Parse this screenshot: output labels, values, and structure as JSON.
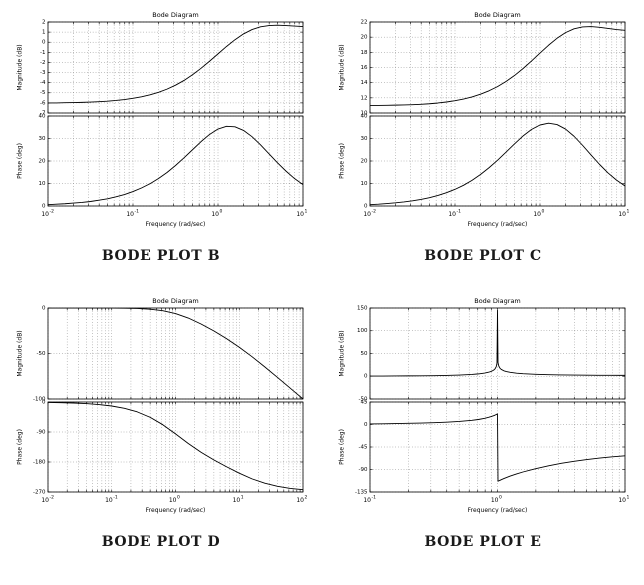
{
  "styles": {
    "background": "#ffffff",
    "grid_color": "#6e6e6e",
    "curve_color": "#000000",
    "axis_color": "#000000",
    "caption_color": "#1a1a1a"
  },
  "chart_data": [
    {
      "id": "bode-b",
      "type": "line",
      "caption": "BODE PLOT B",
      "title": "Bode Diagram",
      "xlabel": "Frequency (rad/sec)",
      "x_scale": "log10",
      "x_log_range": [
        -2,
        1
      ],
      "x_tick_exponents": [
        -2,
        -1,
        0,
        1
      ],
      "grid": true,
      "subplots": [
        {
          "name": "magnitude",
          "ylabel": "Magnitude (dB)",
          "ylim": [
            -7,
            2
          ],
          "yticks": [
            2,
            1,
            0,
            -1,
            -2,
            -3,
            -4,
            -5,
            -6,
            -7
          ],
          "x": [
            -2,
            -1.9,
            -1.8,
            -1.7,
            -1.6,
            -1.5,
            -1.4,
            -1.3,
            -1.2,
            -1.1,
            -1,
            -0.9,
            -0.8,
            -0.7,
            -0.6,
            -0.5,
            -0.4,
            -0.3,
            -0.2,
            -0.1,
            0,
            0.1,
            0.2,
            0.3,
            0.4,
            0.5,
            0.6,
            0.7,
            0.8,
            0.9,
            1
          ],
          "y": [
            -6.0,
            -6.0,
            -5.98,
            -5.97,
            -5.95,
            -5.92,
            -5.88,
            -5.83,
            -5.76,
            -5.67,
            -5.55,
            -5.4,
            -5.2,
            -4.95,
            -4.64,
            -4.25,
            -3.78,
            -3.22,
            -2.58,
            -1.88,
            -1.15,
            -0.42,
            0.25,
            0.82,
            1.25,
            1.52,
            1.65,
            1.68,
            1.65,
            1.6,
            1.55
          ]
        },
        {
          "name": "phase",
          "ylabel": "Phase (deg)",
          "ylim": [
            0,
            40
          ],
          "yticks": [
            40,
            30,
            20,
            10,
            0
          ],
          "x": [
            -2,
            -1.9,
            -1.8,
            -1.7,
            -1.6,
            -1.5,
            -1.4,
            -1.3,
            -1.2,
            -1.1,
            -1,
            -0.9,
            -0.8,
            -0.7,
            -0.6,
            -0.5,
            -0.4,
            -0.3,
            -0.2,
            -0.1,
            0,
            0.1,
            0.2,
            0.3,
            0.4,
            0.5,
            0.6,
            0.7,
            0.8,
            0.9,
            1
          ],
          "y": [
            0.6,
            0.8,
            1.0,
            1.3,
            1.6,
            2.0,
            2.6,
            3.2,
            4.1,
            5.1,
            6.4,
            8.0,
            9.9,
            12.2,
            14.9,
            18.0,
            21.4,
            25.0,
            28.6,
            31.8,
            34.2,
            35.4,
            35.2,
            33.6,
            30.8,
            27.2,
            23.2,
            19.2,
            15.5,
            12.2,
            9.5
          ]
        }
      ]
    },
    {
      "id": "bode-c",
      "type": "line",
      "caption": "BODE PLOT C",
      "title": "Bode Diagram",
      "xlabel": "Frequency (rad/sec)",
      "x_scale": "log10",
      "x_log_range": [
        -2,
        1
      ],
      "x_tick_exponents": [
        -2,
        -1,
        0,
        1
      ],
      "grid": true,
      "subplots": [
        {
          "name": "magnitude",
          "ylabel": "Magnitude (dB)",
          "ylim": [
            10,
            22
          ],
          "yticks": [
            22,
            20,
            18,
            16,
            14,
            12,
            10
          ],
          "x": [
            -2,
            -1.9,
            -1.8,
            -1.7,
            -1.6,
            -1.5,
            -1.4,
            -1.3,
            -1.2,
            -1.1,
            -1,
            -0.9,
            -0.8,
            -0.7,
            -0.6,
            -0.5,
            -0.4,
            -0.3,
            -0.2,
            -0.1,
            0,
            0.1,
            0.2,
            0.3,
            0.4,
            0.5,
            0.6,
            0.7,
            0.8,
            0.9,
            1
          ],
          "y": [
            11.0,
            11.0,
            11.02,
            11.04,
            11.06,
            11.1,
            11.15,
            11.22,
            11.32,
            11.45,
            11.62,
            11.84,
            12.12,
            12.48,
            12.93,
            13.48,
            14.15,
            14.94,
            15.85,
            16.85,
            17.9,
            18.93,
            19.85,
            20.6,
            21.1,
            21.35,
            21.4,
            21.3,
            21.15,
            21.0,
            20.9
          ]
        },
        {
          "name": "phase",
          "ylabel": "Phase (deg)",
          "ylim": [
            0,
            40
          ],
          "yticks": [
            40,
            30,
            20,
            10,
            0
          ],
          "x": [
            -2,
            -1.9,
            -1.8,
            -1.7,
            -1.6,
            -1.5,
            -1.4,
            -1.3,
            -1.2,
            -1.1,
            -1,
            -0.9,
            -0.8,
            -0.7,
            -0.6,
            -0.5,
            -0.4,
            -0.3,
            -0.2,
            -0.1,
            0,
            0.1,
            0.2,
            0.3,
            0.4,
            0.5,
            0.6,
            0.7,
            0.8,
            0.9,
            1
          ],
          "y": [
            0.6,
            0.8,
            1.1,
            1.4,
            1.8,
            2.3,
            2.9,
            3.7,
            4.7,
            5.9,
            7.4,
            9.2,
            11.4,
            14.0,
            17.0,
            20.3,
            23.9,
            27.6,
            31.1,
            34.0,
            36.0,
            36.8,
            36.2,
            34.2,
            31.0,
            27.0,
            22.7,
            18.5,
            14.7,
            11.5,
            8.9
          ]
        }
      ]
    },
    {
      "id": "bode-d",
      "type": "line",
      "caption": "BODE PLOT D",
      "title": "Bode Diagram",
      "xlabel": "Frequency (rad/sec)",
      "x_scale": "log10",
      "x_log_range": [
        -2,
        2
      ],
      "x_tick_exponents": [
        -2,
        -1,
        0,
        1,
        2
      ],
      "grid": true,
      "subplots": [
        {
          "name": "magnitude",
          "ylabel": "Magnitude (dB)",
          "ylim": [
            -100,
            0
          ],
          "yticks": [
            0,
            -50,
            -100
          ],
          "x": [
            -2,
            -1.8,
            -1.6,
            -1.4,
            -1.2,
            -1,
            -0.8,
            -0.6,
            -0.4,
            -0.2,
            0,
            0.2,
            0.4,
            0.6,
            0.8,
            1,
            1.2,
            1.4,
            1.6,
            1.8,
            2
          ],
          "y": [
            0,
            -0.01,
            -0.02,
            -0.03,
            -0.06,
            -0.09,
            -0.22,
            -0.53,
            -1.28,
            -2.93,
            -6.06,
            -11.02,
            -17.55,
            -25.17,
            -33.66,
            -43.1,
            -53.5,
            -64.7,
            -76.3,
            -88.1,
            -100
          ]
        },
        {
          "name": "phase",
          "ylabel": "Phase (deg)",
          "ylim": [
            -270,
            0
          ],
          "yticks": [
            0,
            -90,
            -180,
            -270
          ],
          "x": [
            -2,
            -1.8,
            -1.6,
            -1.4,
            -1.2,
            -1,
            -0.8,
            -0.6,
            -0.4,
            -0.2,
            0,
            0.2,
            0.4,
            0.6,
            0.8,
            1,
            1.2,
            1.4,
            1.6,
            1.8,
            2
          ],
          "y": [
            -1.2,
            -1.9,
            -3.0,
            -4.7,
            -7.6,
            -12.0,
            -18.9,
            -29.6,
            -45.7,
            -68.1,
            -95.7,
            -124.5,
            -150.7,
            -173.5,
            -194.2,
            -213.6,
            -230.6,
            -243.7,
            -253.0,
            -259.2,
            -263.1
          ]
        }
      ]
    },
    {
      "id": "bode-e",
      "type": "line",
      "caption": "BODE PLOT E",
      "title": "Bode Diagram",
      "xlabel": "Frequency (rad/sec)",
      "x_scale": "log10",
      "x_log_range": [
        -1,
        1
      ],
      "x_tick_exponents": [
        -1,
        0,
        1
      ],
      "grid": true,
      "subplots": [
        {
          "name": "magnitude",
          "ylabel": "Magnitude (dB)",
          "ylim": [
            -50,
            150
          ],
          "yticks": [
            150,
            100,
            50,
            0,
            -50
          ],
          "x": [
            -1,
            -0.9,
            -0.8,
            -0.7,
            -0.6,
            -0.5,
            -0.4,
            -0.3,
            -0.2,
            -0.15,
            -0.1,
            -0.07,
            -0.05,
            -0.03,
            -0.02,
            -0.01,
            -0.004,
            0,
            0.004,
            0.01,
            0.02,
            0.03,
            0.05,
            0.07,
            0.1,
            0.15,
            0.2,
            0.3,
            0.4,
            0.5,
            0.6,
            0.7,
            0.8,
            0.9,
            1
          ],
          "y": [
            0.4,
            0.5,
            0.6,
            0.8,
            1.0,
            1.3,
            1.8,
            2.6,
            4.0,
            5.2,
            7.0,
            8.8,
            10.5,
            13.5,
            16.0,
            21.0,
            29.0,
            145.0,
            30.0,
            22.5,
            17.5,
            15.0,
            12.0,
            10.3,
            8.6,
            6.8,
            5.6,
            4.2,
            3.4,
            2.9,
            2.5,
            2.3,
            2.1,
            2.0,
            1.9
          ]
        },
        {
          "name": "phase",
          "ylabel": "Phase (deg)",
          "ylim": [
            -135,
            45
          ],
          "yticks": [
            45,
            0,
            -45,
            -90,
            -135
          ],
          "x": [
            -1,
            -0.9,
            -0.8,
            -0.7,
            -0.6,
            -0.5,
            -0.4,
            -0.3,
            -0.2,
            -0.15,
            -0.1,
            -0.07,
            -0.05,
            -0.03,
            -0.02,
            -0.01,
            -0.004,
            0,
            0.004,
            0.01,
            0.02,
            0.03,
            0.05,
            0.07,
            0.1,
            0.15,
            0.2,
            0.3,
            0.4,
            0.5,
            0.6,
            0.7,
            0.8,
            0.9,
            1
          ],
          "y": [
            1.1,
            1.4,
            1.8,
            2.3,
            2.9,
            3.7,
            4.7,
            6.2,
            8.4,
            10.0,
            12.4,
            14.3,
            15.8,
            17.6,
            18.7,
            19.9,
            20.8,
            21.3,
            -113.5,
            -112.8,
            -111.6,
            -110.4,
            -108.2,
            -106.1,
            -103.2,
            -98.9,
            -95.0,
            -88.3,
            -82.6,
            -77.7,
            -73.6,
            -70.1,
            -67.2,
            -64.7,
            -62.6
          ]
        }
      ]
    }
  ]
}
